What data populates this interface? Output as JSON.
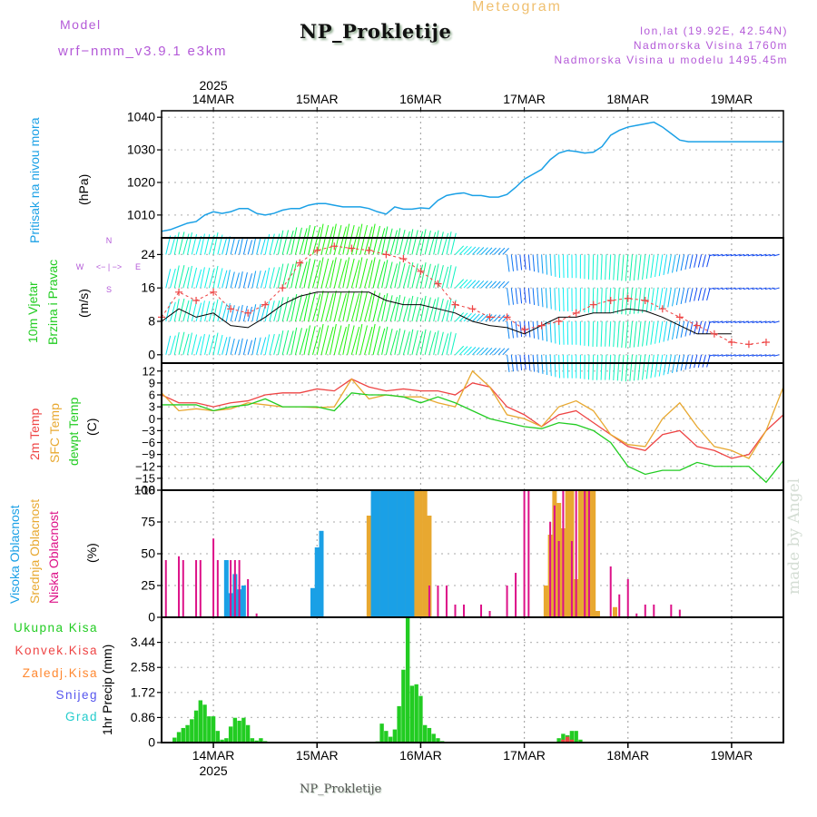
{
  "header": {
    "model_label": "Model",
    "model_name": "wrf−nmm_v3.9.1 e3km",
    "title": "NP_Prokletije",
    "subtitle": "Meteogram",
    "coords": "lon,lat (19.92E, 42.54N)",
    "elevation": "Nadmorska Visina 1760m",
    "model_elevation": "Nadmorska Visina u modelu 1495.45m"
  },
  "footer": {
    "station": "NP_Prokletije",
    "watermark": "made by Angel"
  },
  "colors": {
    "pressure": "#1aa0e6",
    "temp_2m": "#ee4444",
    "temp_sfc": "#e8a830",
    "dewpoint": "#22cc22",
    "cloud_high": "#1aa0e6",
    "cloud_mid": "#e8a830",
    "cloud_low": "#dd1188",
    "precip_total": "#22cc22",
    "precip_conv": "#ee4444",
    "precip_frz": "#ff8830",
    "precip_snow": "#5555ee",
    "precip_hail": "#22cccc",
    "gust": "#ee4444",
    "wind_speed": "#000000"
  },
  "chart_data": [
    {
      "type": "line",
      "panel": "pressure",
      "title": "Pritisak na nivou mora",
      "ylabel": "(hPa)",
      "ylim": [
        1003,
        1042
      ],
      "yticks": [
        1010,
        1020,
        1030,
        1040
      ],
      "x_unit": "hours since 2025-03-13 12:00",
      "xlim": [
        0,
        144
      ],
      "xtick_labels_top": [
        "14MAR",
        "15MAR",
        "16MAR",
        "17MAR",
        "18MAR",
        "19MAR"
      ],
      "xtick_year_top": "2025",
      "xtick_hours": [
        12,
        36,
        60,
        84,
        108,
        132
      ],
      "grid": true,
      "series": [
        {
          "name": "MSLP",
          "x": [
            0,
            2,
            4,
            6,
            8,
            10,
            12,
            14,
            16,
            18,
            20,
            22,
            24,
            26,
            28,
            30,
            32,
            34,
            36,
            38,
            40,
            42,
            44,
            46,
            48,
            50,
            52,
            54,
            56,
            58,
            60,
            62,
            64,
            66,
            68,
            70,
            72,
            74,
            76,
            78,
            80,
            82,
            84,
            86,
            88,
            90,
            92,
            94,
            96,
            98,
            100,
            102,
            104,
            106,
            108,
            110,
            112,
            114,
            116,
            118,
            120,
            122,
            124,
            126,
            128,
            130,
            132,
            134,
            136,
            138,
            140,
            142,
            144
          ],
          "values": [
            1005,
            1005.5,
            1006.5,
            1007.5,
            1008,
            1010,
            1011,
            1010.5,
            1011,
            1012,
            1012,
            1010.5,
            1010,
            1010.5,
            1011.5,
            1012,
            1012,
            1013,
            1013.5,
            1013.5,
            1013,
            1012.5,
            1012.5,
            1012.5,
            1012,
            1011,
            1010.3,
            1012.5,
            1011.8,
            1011.8,
            1012.2,
            1012,
            1014.5,
            1016,
            1016.5,
            1016.8,
            1016,
            1016,
            1015.5,
            1015.5,
            1016.3,
            1018.5,
            1021,
            1022.5,
            1024,
            1027,
            1029,
            1029.8,
            1029.5,
            1029,
            1029.3,
            1031,
            1034.5,
            1036,
            1037,
            1037.5,
            1038,
            1038.5,
            1037,
            1035,
            1033,
            1032.5,
            1032.5,
            1032.5,
            1032.5,
            1032.5,
            1032.5,
            1032.5,
            1032.5,
            1032.5,
            1032.5,
            1032.5,
            1032.5
          ]
        }
      ]
    },
    {
      "type": "line",
      "panel": "wind",
      "title": "10m Vjetar Brzina i Pravac",
      "ylabel": "(m/s)",
      "ylim": [
        -2,
        28
      ],
      "yticks": [
        0,
        8,
        16,
        24
      ],
      "compass": {
        "n": "N",
        "s": "S",
        "w": "W",
        "e": "E"
      },
      "barb_levels": [
        0,
        8,
        16,
        24
      ],
      "series": [
        {
          "name": "wind speed",
          "x": [
            0,
            4,
            8,
            12,
            16,
            20,
            24,
            28,
            32,
            36,
            40,
            44,
            48,
            52,
            56,
            60,
            64,
            68,
            72,
            76,
            80,
            84,
            88,
            92,
            96,
            100,
            104,
            108,
            112,
            116,
            120,
            124,
            128,
            132
          ],
          "values": [
            8,
            11,
            9,
            10,
            7,
            6.5,
            9,
            12,
            14,
            15,
            15,
            15,
            15,
            13,
            12,
            12,
            11,
            10,
            8,
            7,
            6.5,
            5,
            7,
            9,
            9,
            10,
            10,
            11,
            10.5,
            9,
            7,
            5,
            5,
            5
          ]
        },
        {
          "name": "gust",
          "x": [
            0,
            4,
            8,
            12,
            16,
            20,
            24,
            28,
            32,
            36,
            40,
            44,
            48,
            52,
            56,
            60,
            64,
            68,
            72,
            76,
            80,
            84,
            88,
            92,
            96,
            100,
            104,
            108,
            112,
            116,
            120,
            124,
            128,
            132,
            136,
            140
          ],
          "values": [
            9,
            15,
            13,
            15,
            11,
            10,
            12,
            16,
            22,
            25,
            26,
            25.5,
            25,
            24,
            23,
            20,
            17,
            12,
            11,
            9,
            9,
            6,
            7,
            8,
            10,
            12,
            13,
            13.5,
            13,
            11,
            9,
            7,
            5,
            3,
            2.5,
            3
          ]
        }
      ]
    },
    {
      "type": "line",
      "panel": "temperature",
      "legend": [
        "2m Temp",
        "SFC Temp",
        "dewpt Temp"
      ],
      "ylabel": "(C)",
      "ylim": [
        -18,
        14
      ],
      "yticks": [
        12,
        9,
        6,
        3,
        0,
        -3,
        -6,
        -9,
        -12,
        -15,
        -18
      ],
      "series": [
        {
          "name": "2m Temp",
          "x": [
            0,
            4,
            8,
            12,
            16,
            20,
            24,
            28,
            32,
            36,
            40,
            44,
            48,
            52,
            56,
            60,
            64,
            68,
            72,
            76,
            80,
            84,
            88,
            92,
            96,
            100,
            104,
            108,
            112,
            116,
            120,
            124,
            128,
            132,
            136,
            140,
            144
          ],
          "values": [
            6,
            4,
            4,
            3,
            4,
            4.5,
            6,
            6.5,
            6.5,
            7.5,
            7,
            10,
            8,
            7,
            7.5,
            7,
            7,
            6,
            9,
            8,
            3,
            1,
            -2,
            1,
            2,
            -1,
            -4,
            -7,
            -8,
            -4,
            -3,
            -7,
            -8,
            -10,
            -9,
            -3,
            1
          ]
        },
        {
          "name": "SFC Temp",
          "x": [
            0,
            4,
            8,
            12,
            16,
            20,
            24,
            28,
            32,
            36,
            40,
            44,
            48,
            52,
            56,
            60,
            64,
            68,
            72,
            76,
            80,
            84,
            88,
            92,
            96,
            100,
            104,
            108,
            112,
            116,
            120,
            124,
            128,
            132,
            136,
            140,
            144
          ],
          "values": [
            6.5,
            2,
            2.5,
            2,
            2.5,
            4,
            3.5,
            3,
            3,
            2.8,
            3,
            10,
            5,
            6,
            5.5,
            5.5,
            4,
            3,
            12,
            8,
            1,
            0,
            -2,
            3,
            4.5,
            2,
            -4,
            -6.5,
            -7,
            0,
            4,
            -2,
            -7,
            -8,
            -10,
            -3,
            8
          ]
        },
        {
          "name": "dewpt Temp",
          "x": [
            0,
            4,
            8,
            12,
            16,
            20,
            24,
            28,
            32,
            36,
            40,
            44,
            48,
            52,
            56,
            60,
            64,
            68,
            72,
            76,
            80,
            84,
            88,
            92,
            96,
            100,
            104,
            108,
            112,
            116,
            120,
            124,
            128,
            132,
            136,
            140,
            144
          ],
          "values": [
            3.5,
            3.5,
            3.5,
            2,
            3,
            3.5,
            5,
            3,
            3,
            3,
            2,
            6.5,
            6,
            6,
            5.5,
            4,
            5.5,
            4,
            2,
            0,
            -1,
            -2,
            -2.5,
            -1,
            -1.5,
            -3,
            -6,
            -12,
            -14,
            -13,
            -13,
            -11,
            -12,
            -12,
            -12,
            -16,
            -10.5
          ]
        }
      ]
    },
    {
      "type": "bar",
      "panel": "cloud",
      "legend": [
        "Visoka Oblacnost",
        "Srednja Oblacnost",
        "Niska Oblacnost"
      ],
      "ylabel": "(%)",
      "ylim": [
        0,
        100
      ],
      "yticks": [
        0,
        25,
        50,
        75,
        100
      ],
      "series": [
        {
          "name": "Visoka Oblacnost",
          "x": [
            15,
            16,
            17,
            18,
            19,
            20,
            21,
            35,
            36,
            37,
            49,
            50,
            51,
            52,
            53,
            54,
            55,
            56,
            57,
            58
          ],
          "values": [
            45,
            19,
            34,
            22,
            25,
            0,
            0,
            23,
            55,
            68,
            100,
            100,
            100,
            100,
            100,
            100,
            100,
            100,
            100,
            100
          ]
        },
        {
          "name": "Srednja Oblacnost",
          "x": [
            48,
            49,
            50,
            51,
            52,
            53,
            54,
            55,
            56,
            57,
            58,
            59,
            60,
            61,
            62,
            89,
            90,
            91,
            92,
            93,
            94,
            95,
            96,
            97,
            98,
            99,
            100,
            101,
            105
          ],
          "values": [
            80,
            95,
            100,
            100,
            100,
            100,
            100,
            100,
            100,
            100,
            100,
            100,
            100,
            100,
            80,
            25,
            65,
            100,
            90,
            70,
            100,
            100,
            30,
            100,
            100,
            100,
            100,
            5,
            8
          ]
        },
        {
          "name": "Niska Oblacnost",
          "x": [
            1,
            4,
            5,
            8,
            9,
            12,
            13,
            16,
            17,
            18,
            20,
            22,
            62,
            64,
            66,
            68,
            70,
            74,
            76,
            80,
            82,
            84,
            85,
            90,
            91,
            92,
            93,
            95,
            96,
            98,
            99,
            104,
            106,
            108,
            110,
            112,
            114,
            118,
            120
          ],
          "values": [
            45,
            48,
            45,
            45,
            45,
            62,
            45,
            45,
            45,
            45,
            30,
            3,
            25,
            25,
            25,
            10,
            10,
            10,
            5,
            25,
            35,
            100,
            100,
            75,
            88,
            60,
            100,
            60,
            100,
            100,
            100,
            40,
            18,
            30,
            3,
            10,
            10,
            10,
            6
          ]
        }
      ]
    },
    {
      "type": "bar",
      "panel": "precipitation",
      "legend": [
        "Ukupna Kisa",
        "Konvek.Kisa",
        "Zaledj.Kisa",
        "Snijeg",
        "Grad"
      ],
      "ylabel": "1hr Precip (mm)",
      "ylim": [
        0,
        4.3
      ],
      "yticks": [
        0,
        0.86,
        1.72,
        2.58,
        3.44
      ],
      "xtick_labels_bottom": [
        "14MAR",
        "15MAR",
        "16MAR",
        "17MAR",
        "18MAR",
        "19MAR"
      ],
      "xtick_year_bottom": "2025",
      "series": [
        {
          "name": "Ukupna Kisa",
          "x": [
            3,
            4,
            5,
            6,
            7,
            8,
            9,
            10,
            11,
            12,
            13,
            14,
            15,
            16,
            17,
            18,
            19,
            20,
            21,
            22,
            23,
            24,
            25,
            26,
            50,
            51,
            52,
            53,
            54,
            55,
            56,
            57,
            58,
            59,
            60,
            61,
            62,
            63,
            64,
            65,
            92,
            93,
            94,
            95,
            96,
            97
          ],
          "values": [
            0.17,
            0.36,
            0.5,
            0.6,
            0.8,
            1.1,
            1.45,
            1.3,
            0.9,
            0.9,
            0.4,
            0.1,
            0.15,
            0.55,
            0.85,
            0.75,
            0.85,
            0.6,
            0.15,
            0.07,
            0.15,
            0.05,
            0,
            0,
            0.04,
            0.65,
            0.4,
            0.2,
            0.45,
            1.25,
            2.5,
            4.3,
            1.95,
            2.0,
            1.6,
            0.6,
            0.5,
            0.3,
            0.15,
            0.05,
            0.15,
            0.3,
            0.25,
            0.4,
            0.4,
            0.1
          ]
        },
        {
          "name": "Konvek.Kisa",
          "x": [
            93,
            94,
            95
          ],
          "values": [
            0.1,
            0.2,
            0.1
          ]
        }
      ]
    }
  ]
}
